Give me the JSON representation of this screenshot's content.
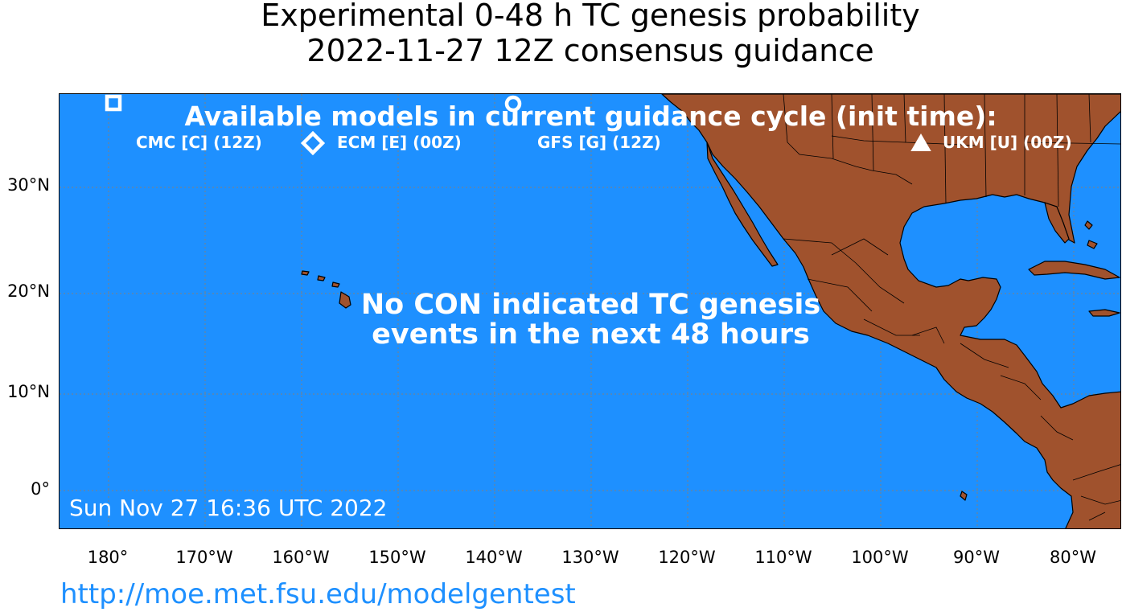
{
  "title": {
    "line1": "Experimental 0-48 h TC genesis probability",
    "line2": "2022-11-27 12Z consensus guidance"
  },
  "map": {
    "ocean_color": "#1e90ff",
    "land_color": "#a0522d",
    "lat_labels": [
      "30°N",
      "20°N",
      "10°N",
      "0°"
    ],
    "lon_labels": [
      "180°",
      "170°W",
      "160°W",
      "150°W",
      "140°W",
      "130°W",
      "120°W",
      "110°W",
      "100°W",
      "90°W",
      "80°W"
    ],
    "gridlines": "dotted"
  },
  "legend": {
    "title": "Available models in current guidance cycle (init time):",
    "items": [
      {
        "icon": "square-icon",
        "label": "CMC [C] (12Z)"
      },
      {
        "icon": "diamond-icon",
        "label": "ECM [E] (00Z)"
      },
      {
        "icon": "circle-icon",
        "label": "GFS [G] (12Z)"
      },
      {
        "icon": "triangle-icon",
        "label": "UKM [U] (00Z)"
      }
    ]
  },
  "message": {
    "line1": "No CON indicated TC genesis",
    "line2": "events in the next 48 hours"
  },
  "timestamp": "Sun Nov 27 16:36 UTC 2022",
  "url": "http://moe.met.fsu.edu/modelgentest"
}
